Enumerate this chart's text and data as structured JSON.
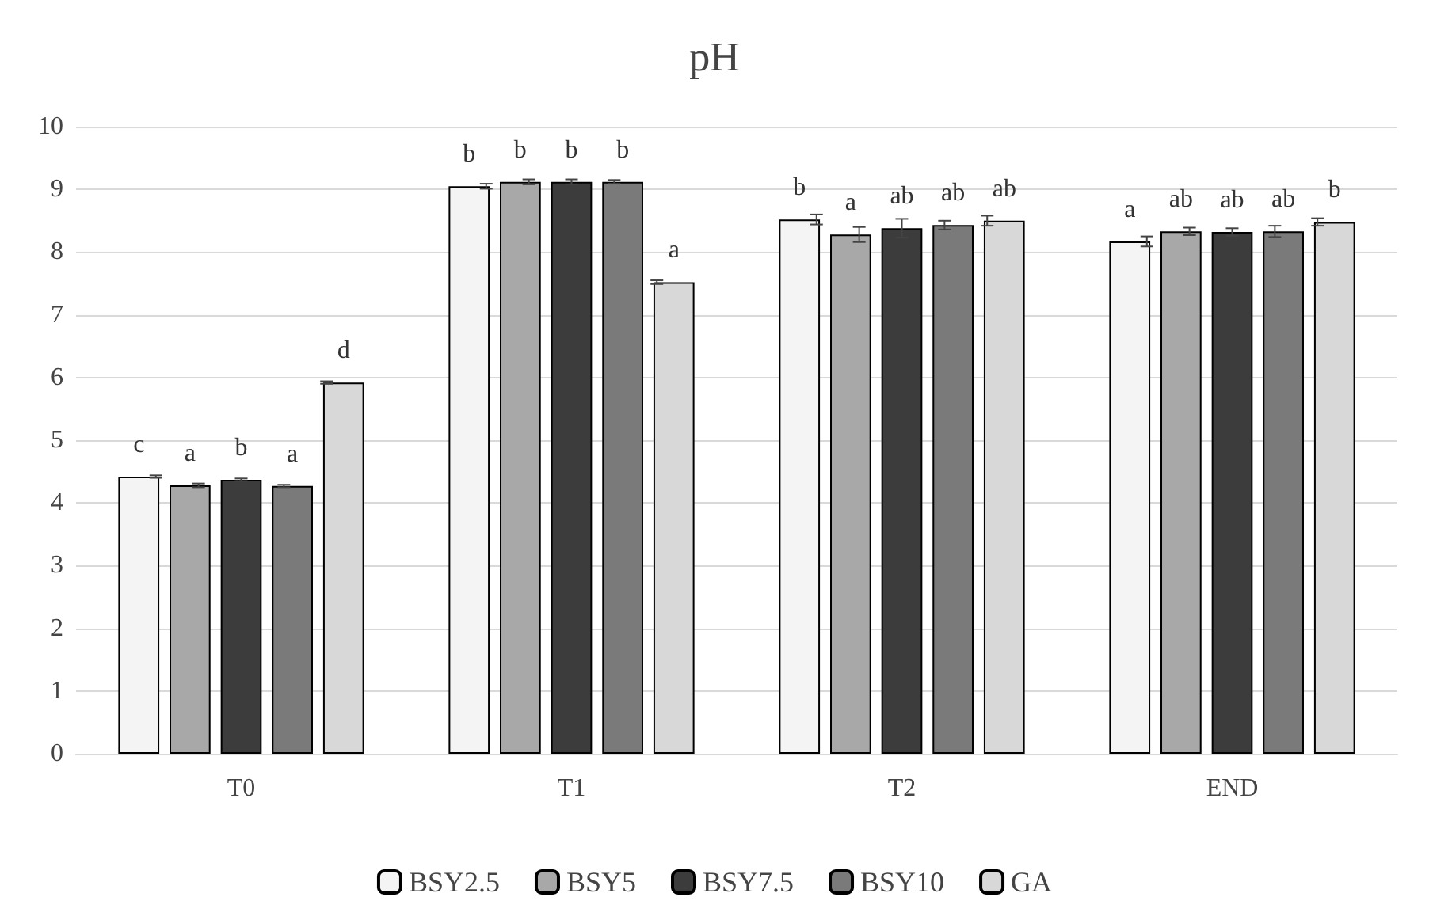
{
  "chart_data": {
    "type": "bar",
    "title": "pH",
    "categories": [
      "T0",
      "T1",
      "T2",
      "END"
    ],
    "series": [
      {
        "name": "BSY2.5",
        "color": "#f4f4f4",
        "values": [
          4.42,
          9.05,
          8.52,
          8.17
        ],
        "errors": [
          0.02,
          0.04,
          0.08,
          0.08
        ],
        "value_labels": [
          "c",
          "b",
          "b",
          "a"
        ]
      },
      {
        "name": "BSY5",
        "color": "#a8a8a8",
        "values": [
          4.28,
          9.12,
          8.28,
          8.33
        ],
        "errors": [
          0.03,
          0.04,
          0.12,
          0.06
        ],
        "value_labels": [
          "a",
          "b",
          "a",
          "ab"
        ]
      },
      {
        "name": "BSY7.5",
        "color": "#3c3c3c",
        "values": [
          4.37,
          9.12,
          8.38,
          8.32
        ],
        "errors": [
          0.02,
          0.04,
          0.15,
          0.06
        ],
        "value_labels": [
          "b",
          "b",
          "ab",
          "ab"
        ]
      },
      {
        "name": "BSY10",
        "color": "#7a7a7a",
        "values": [
          4.27,
          9.12,
          8.43,
          8.33
        ],
        "errors": [
          0.02,
          0.03,
          0.07,
          0.09
        ],
        "value_labels": [
          "a",
          "b",
          "ab",
          "ab"
        ]
      },
      {
        "name": "GA",
        "color": "#d8d8d8",
        "values": [
          5.92,
          7.52,
          8.5,
          8.48
        ],
        "errors": [
          0.02,
          0.03,
          0.08,
          0.06
        ],
        "value_labels": [
          "d",
          "a",
          "ab",
          "b"
        ]
      }
    ],
    "ylim": [
      0,
      10
    ],
    "yticks": [
      0,
      1,
      2,
      3,
      4,
      5,
      6,
      7,
      8,
      9,
      10
    ],
    "grid": "y",
    "legend": "bottom"
  }
}
